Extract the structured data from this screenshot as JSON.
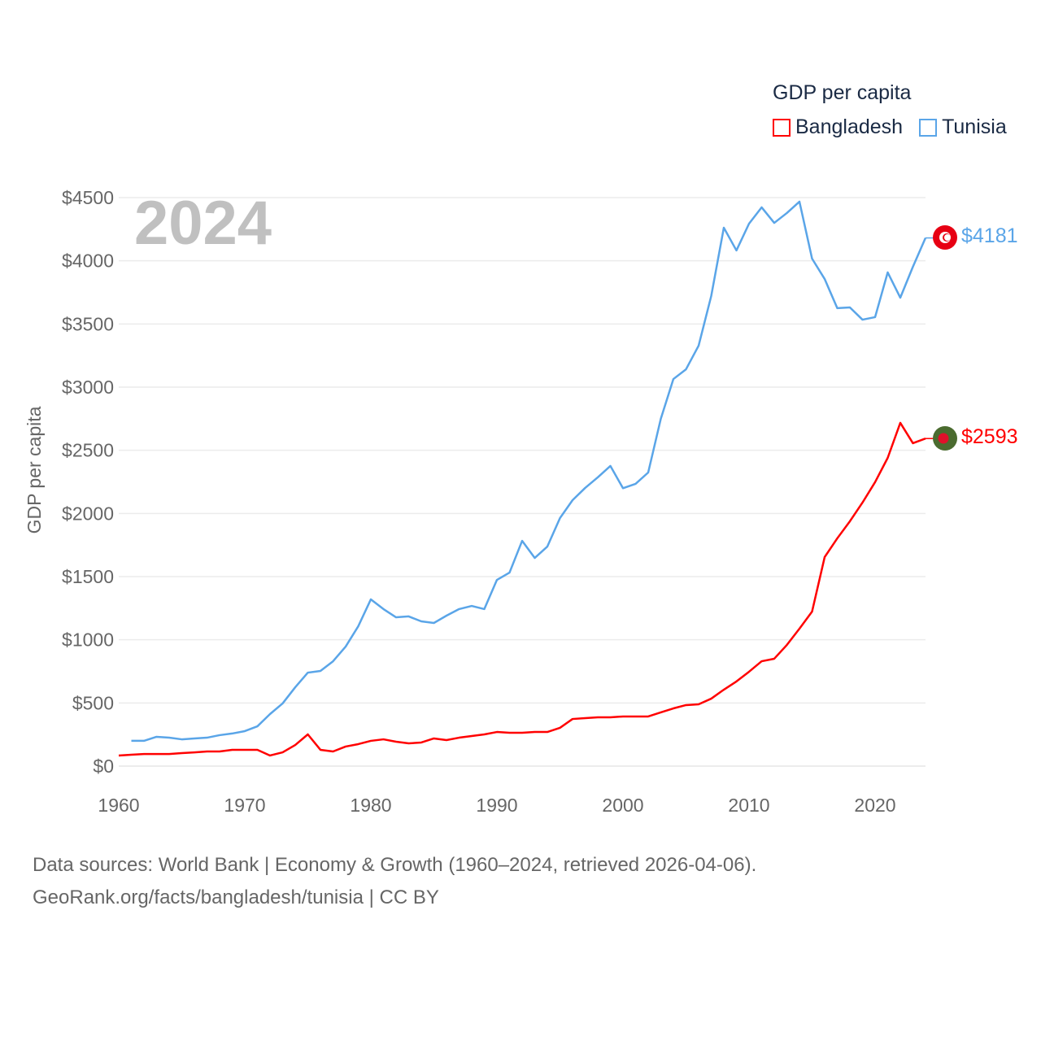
{
  "chart_data": {
    "type": "line",
    "title": "GDP per capita",
    "year_watermark": "2024",
    "xlabel": "",
    "ylabel": "GDP per capita",
    "xlim": [
      1960,
      2024
    ],
    "ylim": [
      0,
      4500
    ],
    "x_ticks": [
      "1960",
      "1970",
      "1980",
      "1990",
      "2000",
      "2010",
      "2020"
    ],
    "y_ticks": [
      "$0",
      "$500",
      "$1000",
      "$1500",
      "$2000",
      "$2500",
      "$3000",
      "$3500",
      "$4000",
      "$4500"
    ],
    "grid": true,
    "legend_placement": "top-right",
    "series": [
      {
        "name": "Bangladesh",
        "color": "#ff0000",
        "start_year": 1960,
        "end_label": "$2593",
        "values": [
          84,
          90,
          96,
          96,
          96,
          103,
          109,
          116,
          116,
          129,
          129,
          129,
          84,
          109,
          167,
          251,
          129,
          116,
          155,
          174,
          200,
          212,
          193,
          180,
          187,
          219,
          206,
          225,
          238,
          251,
          270,
          264,
          264,
          270,
          270,
          303,
          373,
          380,
          386,
          386,
          393,
          393,
          393,
          425,
          457,
          483,
          489,
          534,
          605,
          670,
          747,
          830,
          850,
          959,
          1088,
          1223,
          1655,
          1803,
          1938,
          2086,
          2248,
          2440,
          2717,
          2556,
          2593
        ]
      },
      {
        "name": "Tunisia",
        "color": "#5aa5e8",
        "start_year": 1961,
        "end_label": "$4181",
        "values": [
          200,
          200,
          232,
          225,
          212,
          219,
          225,
          245,
          258,
          277,
          315,
          412,
          496,
          624,
          740,
          753,
          830,
          946,
          1107,
          1320,
          1243,
          1178,
          1185,
          1146,
          1133,
          1191,
          1243,
          1268,
          1243,
          1474,
          1532,
          1783,
          1648,
          1738,
          1963,
          2105,
          2202,
          2286,
          2376,
          2200,
          2234,
          2324,
          2749,
          3064,
          3141,
          3328,
          3721,
          4262,
          4082,
          4294,
          4423,
          4300,
          4378,
          4468,
          4017,
          3856,
          3625,
          3631,
          3534,
          3554,
          3908,
          3708,
          3953,
          4181
        ]
      }
    ]
  },
  "footer": {
    "line1": "Data sources: World Bank | Economy & Growth (1960–2024, retrieved 2026-04-06).",
    "line2": "GeoRank.org/facts/bangladesh/tunisia | CC BY"
  }
}
